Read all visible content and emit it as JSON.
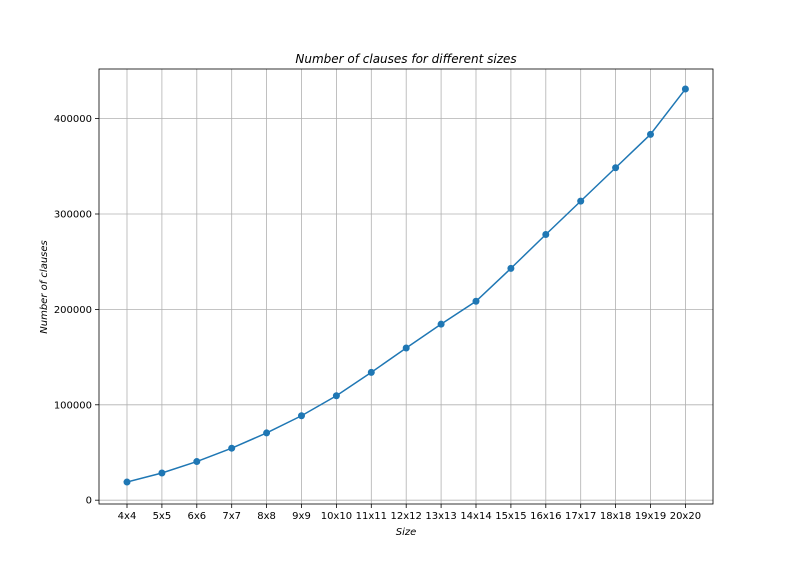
{
  "chart_data": {
    "type": "line",
    "title": "Number of clauses for different sizes",
    "xlabel": "Size",
    "ylabel": "Number of clauses",
    "categories": [
      "4x4",
      "5x5",
      "6x6",
      "7x7",
      "8x8",
      "9x9",
      "10x10",
      "11x11",
      "12x12",
      "13x13",
      "14x14",
      "15x15",
      "16x16",
      "17x17",
      "18x18",
      "19x19",
      "20x20"
    ],
    "series": [
      {
        "values": [
          19000,
          28500,
          40500,
          54500,
          70500,
          88500,
          109500,
          134000,
          159500,
          184500,
          208500,
          243000,
          278500,
          313500,
          348500,
          383500,
          431000
        ],
        "color": "#1f77b4",
        "marker": "circle"
      }
    ],
    "ylim": [
      -4000,
      452000
    ],
    "yticks": [
      0,
      100000,
      200000,
      300000,
      400000
    ],
    "ytick_labels": [
      "0",
      "100000",
      "200000",
      "300000",
      "400000"
    ],
    "grid": true,
    "legend": "none"
  }
}
